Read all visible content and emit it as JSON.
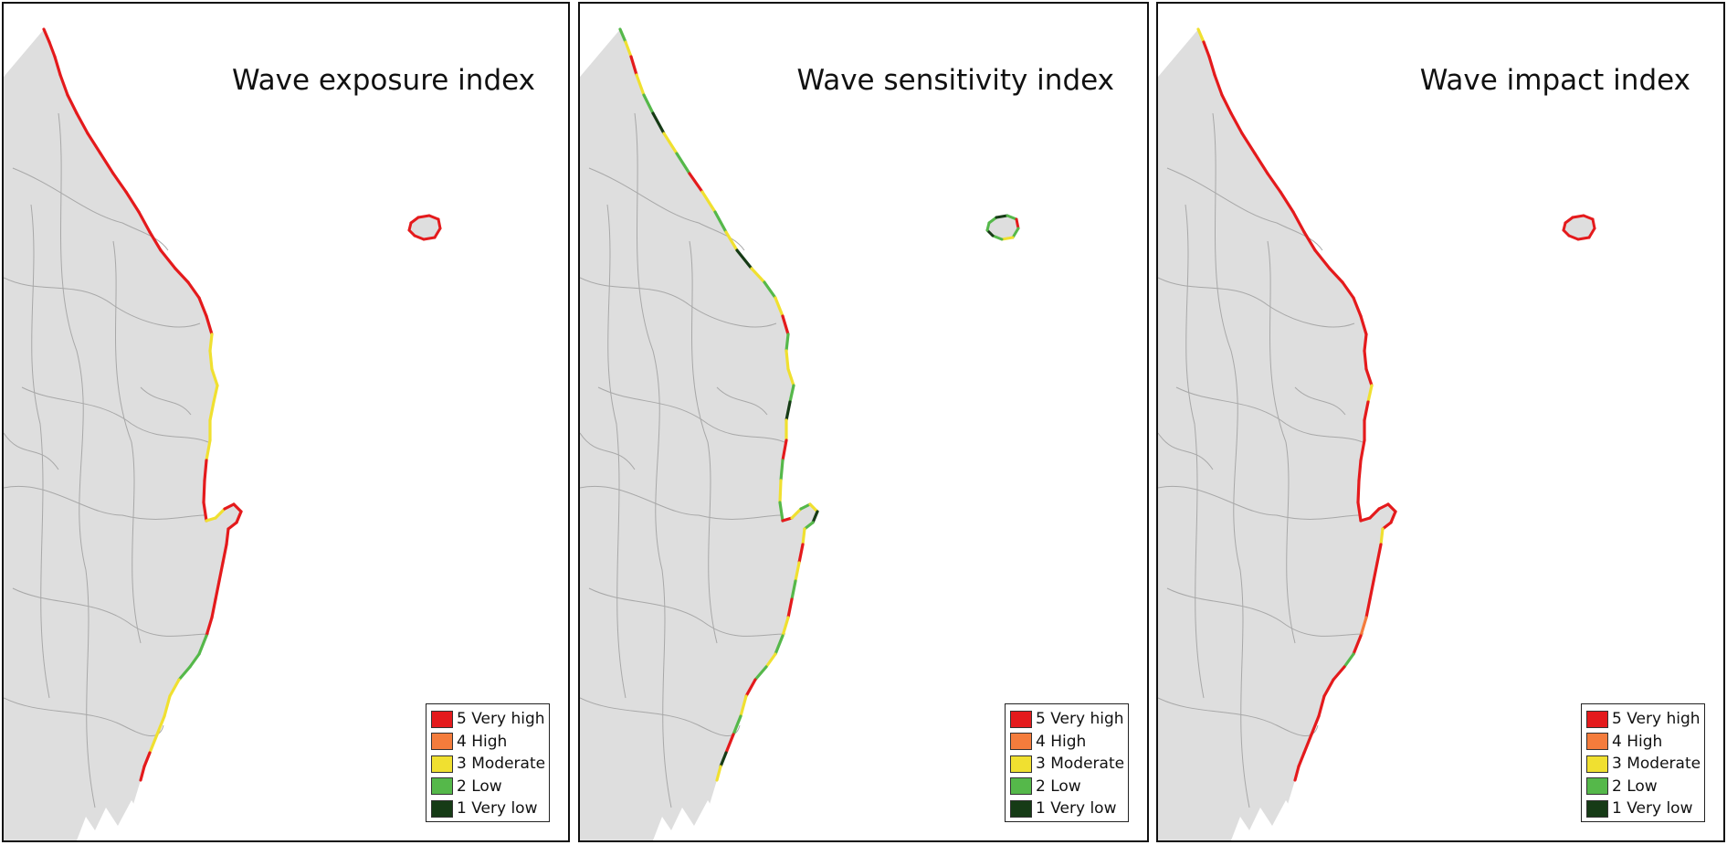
{
  "panels": [
    {
      "id": "exposure",
      "title": "Wave exposure index",
      "profile": "exposure"
    },
    {
      "id": "sensitivity",
      "title": "Wave sensitivity index",
      "profile": "sensitivity"
    },
    {
      "id": "impact",
      "title": "Wave impact index",
      "profile": "impact"
    }
  ],
  "legend": [
    {
      "label": "5 Very high",
      "color": "#e41a1c"
    },
    {
      "label": "4 High",
      "color": "#f47c3c"
    },
    {
      "label": "3 Moderate",
      "color": "#f0e030"
    },
    {
      "label": "2 Low",
      "color": "#55b84a"
    },
    {
      "label": "1 Very low",
      "color": "#163b16"
    }
  ],
  "colors": {
    "land": "#dedede",
    "boundary": "#a8a8a8",
    "frame": "#111111"
  }
}
